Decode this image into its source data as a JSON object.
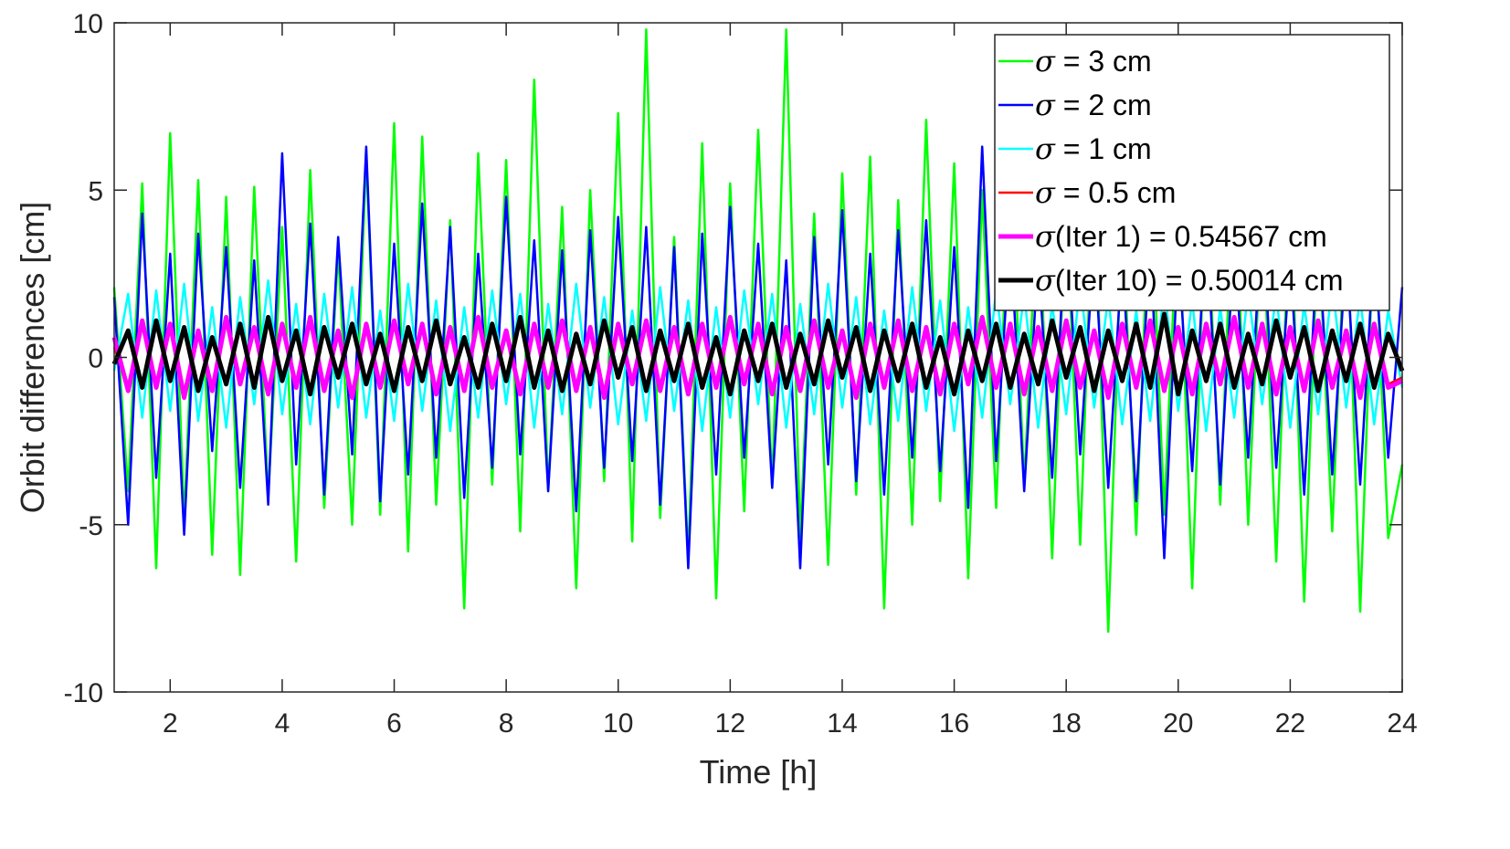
{
  "chart_data": {
    "type": "line",
    "xlabel": "Time [h]",
    "ylabel": "Orbit differences [cm]",
    "xlim": [
      1,
      24
    ],
    "ylim": [
      -10,
      10
    ],
    "xticks": [
      2,
      4,
      6,
      8,
      10,
      12,
      14,
      16,
      18,
      20,
      22,
      24
    ],
    "yticks": [
      -10,
      -5,
      0,
      5,
      10
    ],
    "grid": false,
    "legend_position": "top-right",
    "series": [
      {
        "name": "σ = 3 cm",
        "symbol": "σ",
        "label_rest": " = 3 cm",
        "color": "#00ff00",
        "line_width": 2.5,
        "std_cm": 3,
        "x": [
          1.0,
          1.25,
          1.5,
          1.75,
          2.0,
          2.25,
          2.5,
          2.75,
          3.0,
          3.25,
          3.5,
          3.75,
          4.0,
          4.25,
          4.5,
          4.75,
          5.0,
          5.25,
          5.5,
          5.75,
          6.0,
          6.25,
          6.5,
          6.75,
          7.0,
          7.25,
          7.5,
          7.75,
          8.0,
          8.25,
          8.5,
          8.75,
          9.0,
          9.25,
          9.5,
          9.75,
          10.0,
          10.25,
          10.5,
          10.75,
          11.0,
          11.25,
          11.5,
          11.75,
          12.0,
          12.25,
          12.5,
          12.75,
          13.0,
          13.25,
          13.5,
          13.75,
          14.0,
          14.25,
          14.5,
          14.75,
          15.0,
          15.25,
          15.5,
          15.75,
          16.0,
          16.25,
          16.5,
          16.75,
          17.0,
          17.25,
          17.5,
          17.75,
          18.0,
          18.25,
          18.5,
          18.75,
          19.0,
          19.25,
          19.5,
          19.75,
          20.0,
          20.25,
          20.5,
          20.75,
          21.0,
          21.25,
          21.5,
          21.75,
          22.0,
          22.25,
          22.5,
          22.75,
          23.0,
          23.25,
          23.5,
          23.75,
          24.0
        ],
        "y": [
          2.1,
          -4.0,
          5.2,
          -6.3,
          6.7,
          -4.9,
          5.3,
          -5.9,
          4.8,
          -6.5,
          5.1,
          -4.2,
          3.9,
          -6.1,
          5.6,
          -4.5,
          3.2,
          -5.0,
          6.0,
          -4.7,
          7.0,
          -5.8,
          6.6,
          -4.4,
          4.1,
          -7.5,
          6.1,
          -3.8,
          5.9,
          -5.2,
          8.3,
          -4.0,
          4.5,
          -6.9,
          5.0,
          -3.7,
          7.3,
          -5.5,
          9.8,
          -4.8,
          3.6,
          -6.0,
          6.4,
          -7.2,
          5.2,
          -4.6,
          6.8,
          -3.9,
          9.8,
          -5.4,
          4.3,
          -6.2,
          5.5,
          -4.1,
          6.0,
          -7.5,
          4.7,
          -5.0,
          7.1,
          -4.3,
          5.8,
          -6.6,
          5.0,
          -4.5,
          6.3,
          -3.8,
          5.2,
          -6.0,
          4.9,
          -5.6,
          6.1,
          -8.2,
          4.4,
          -5.3,
          5.7,
          -4.7,
          4.9,
          -6.9,
          5.3,
          -4.4,
          6.2,
          -5.0,
          4.6,
          -6.1,
          5.1,
          -7.3,
          4.0,
          -5.2,
          4.8,
          -7.6,
          4.3,
          -5.4,
          -3.2
        ]
      },
      {
        "name": "σ = 2 cm",
        "symbol": "σ",
        "label_rest": " = 2 cm",
        "color": "#0000ff",
        "line_width": 2.5,
        "std_cm": 2,
        "x": [
          1.0,
          1.25,
          1.5,
          1.75,
          2.0,
          2.25,
          2.5,
          2.75,
          3.0,
          3.25,
          3.5,
          3.75,
          4.0,
          4.25,
          4.5,
          4.75,
          5.0,
          5.25,
          5.5,
          5.75,
          6.0,
          6.25,
          6.5,
          6.75,
          7.0,
          7.25,
          7.5,
          7.75,
          8.0,
          8.25,
          8.5,
          8.75,
          9.0,
          9.25,
          9.5,
          9.75,
          10.0,
          10.25,
          10.5,
          10.75,
          11.0,
          11.25,
          11.5,
          11.75,
          12.0,
          12.25,
          12.5,
          12.75,
          13.0,
          13.25,
          13.5,
          13.75,
          14.0,
          14.25,
          14.5,
          14.75,
          15.0,
          15.25,
          15.5,
          15.75,
          16.0,
          16.25,
          16.5,
          16.75,
          17.0,
          17.25,
          17.5,
          17.75,
          18.0,
          18.25,
          18.5,
          18.75,
          19.0,
          19.25,
          19.5,
          19.75,
          20.0,
          20.25,
          20.5,
          20.75,
          21.0,
          21.25,
          21.5,
          21.75,
          22.0,
          22.25,
          22.5,
          22.75,
          23.0,
          23.25,
          23.5,
          23.75,
          24.0
        ],
        "y": [
          1.8,
          -5.0,
          4.3,
          -3.6,
          3.1,
          -5.3,
          3.7,
          -2.8,
          3.3,
          -3.9,
          2.9,
          -4.4,
          6.1,
          -3.2,
          4.0,
          -4.1,
          3.6,
          -2.9,
          6.3,
          -4.3,
          3.4,
          -3.5,
          4.6,
          -3.0,
          3.9,
          -4.2,
          3.1,
          -3.3,
          4.8,
          -2.9,
          3.5,
          -4.0,
          3.2,
          -4.6,
          3.8,
          -3.3,
          4.2,
          -3.1,
          3.9,
          -4.4,
          3.3,
          -6.3,
          3.7,
          -3.5,
          4.5,
          -3.0,
          3.4,
          -3.9,
          2.9,
          -6.3,
          3.6,
          -3.2,
          4.4,
          -3.7,
          3.1,
          -4.1,
          3.8,
          -3.0,
          4.1,
          -3.4,
          3.3,
          -4.5,
          6.3,
          -3.1,
          3.7,
          -4.0,
          3.0,
          -3.6,
          4.2,
          -2.9,
          3.4,
          -3.9,
          3.1,
          -4.3,
          3.6,
          -6.0,
          3.2,
          -3.4,
          4.0,
          -3.8,
          3.5,
          -3.0,
          4.3,
          -3.3,
          3.0,
          -4.1,
          3.7,
          -3.5,
          3.2,
          -3.8,
          3.4,
          -3.0,
          2.1
        ]
      },
      {
        "name": "σ = 1 cm",
        "symbol": "σ",
        "label_rest": " = 1 cm",
        "color": "#00ffff",
        "line_width": 2.5,
        "std_cm": 1,
        "x": [
          1.0,
          1.25,
          1.5,
          1.75,
          2.0,
          2.25,
          2.5,
          2.75,
          3.0,
          3.25,
          3.5,
          3.75,
          4.0,
          4.25,
          4.5,
          4.75,
          5.0,
          5.25,
          5.5,
          5.75,
          6.0,
          6.25,
          6.5,
          6.75,
          7.0,
          7.25,
          7.5,
          7.75,
          8.0,
          8.25,
          8.5,
          8.75,
          9.0,
          9.25,
          9.5,
          9.75,
          10.0,
          10.25,
          10.5,
          10.75,
          11.0,
          11.25,
          11.5,
          11.75,
          12.0,
          12.25,
          12.5,
          12.75,
          13.0,
          13.25,
          13.5,
          13.75,
          14.0,
          14.25,
          14.5,
          14.75,
          15.0,
          15.25,
          15.5,
          15.75,
          16.0,
          16.25,
          16.5,
          16.75,
          17.0,
          17.25,
          17.5,
          17.75,
          18.0,
          18.25,
          18.5,
          18.75,
          19.0,
          19.25,
          19.5,
          19.75,
          20.0,
          20.25,
          20.5,
          20.75,
          21.0,
          21.25,
          21.5,
          21.75,
          22.0,
          22.25,
          22.5,
          22.75,
          23.0,
          23.25,
          23.5,
          23.75,
          24.0
        ],
        "y": [
          -0.4,
          1.9,
          -1.8,
          2.0,
          -1.6,
          2.2,
          -1.9,
          1.5,
          -2.1,
          1.8,
          -1.4,
          2.3,
          -1.7,
          1.6,
          -2.0,
          1.9,
          -1.5,
          2.1,
          -1.8,
          1.4,
          -1.9,
          2.2,
          -1.6,
          1.7,
          -2.2,
          1.5,
          -1.8,
          2.0,
          -1.4,
          1.9,
          -2.1,
          1.6,
          -1.7,
          2.2,
          -1.5,
          1.8,
          -2.0,
          1.4,
          -1.9,
          2.1,
          -1.6,
          1.7,
          -2.2,
          1.5,
          -1.8,
          2.0,
          -1.4,
          1.9,
          -2.1,
          1.6,
          -1.7,
          2.2,
          -1.5,
          1.8,
          -2.0,
          1.4,
          -1.9,
          2.1,
          -1.6,
          1.7,
          -2.2,
          1.5,
          -1.8,
          2.0,
          -1.4,
          1.9,
          -2.1,
          1.6,
          -1.7,
          2.2,
          -1.5,
          1.8,
          -2.0,
          1.4,
          -1.9,
          2.1,
          -1.6,
          1.7,
          -2.2,
          1.5,
          -1.8,
          2.0,
          -1.4,
          1.9,
          -2.1,
          1.6,
          -1.7,
          2.2,
          -1.5,
          1.8,
          -2.0,
          1.4,
          -0.9
        ]
      },
      {
        "name": "σ = 0.5 cm",
        "symbol": "σ",
        "label_rest": " = 0.5 cm",
        "color": "#ff0000",
        "line_width": 2.5,
        "std_cm": 0.5,
        "x": [
          1.0,
          1.25,
          1.5,
          1.75,
          2.0,
          2.25,
          2.5,
          2.75,
          3.0,
          3.25,
          3.5,
          3.75,
          4.0,
          4.25,
          4.5,
          4.75,
          5.0,
          5.25,
          5.5,
          5.75,
          6.0,
          6.25,
          6.5,
          6.75,
          7.0,
          7.25,
          7.5,
          7.75,
          8.0,
          8.25,
          8.5,
          8.75,
          9.0,
          9.25,
          9.5,
          9.75,
          10.0,
          10.25,
          10.5,
          10.75,
          11.0,
          11.25,
          11.5,
          11.75,
          12.0,
          12.25,
          12.5,
          12.75,
          13.0,
          13.25,
          13.5,
          13.75,
          14.0,
          14.25,
          14.5,
          14.75,
          15.0,
          15.25,
          15.5,
          15.75,
          16.0,
          16.25,
          16.5,
          16.75,
          17.0,
          17.25,
          17.5,
          17.75,
          18.0,
          18.25,
          18.5,
          18.75,
          19.0,
          19.25,
          19.5,
          19.75,
          20.0,
          20.25,
          20.5,
          20.75,
          21.0,
          21.25,
          21.5,
          21.75,
          22.0,
          22.25,
          22.5,
          22.75,
          23.0,
          23.25,
          23.5,
          23.75,
          24.0
        ],
        "y": [
          0.3,
          -0.9,
          1.0,
          -0.8,
          0.9,
          -1.0,
          0.7,
          -0.9,
          1.1,
          -0.7,
          0.8,
          -1.0,
          0.9,
          -0.8,
          1.0,
          -0.9,
          0.7,
          -1.1,
          0.9,
          -0.8,
          1.0,
          -0.7,
          0.9,
          -1.0,
          0.8,
          -0.9,
          1.1,
          -0.8,
          0.7,
          -1.0,
          0.9,
          -0.8,
          1.0,
          -0.9,
          0.8,
          -1.1,
          0.9,
          -0.7,
          1.0,
          -0.9,
          0.8,
          -1.0,
          0.9,
          -0.8,
          1.1,
          -0.7,
          0.9,
          -1.0,
          0.8,
          -0.9,
          1.0,
          -0.8,
          0.7,
          -1.1,
          0.9,
          -0.8,
          1.0,
          -0.9,
          0.8,
          -1.0,
          0.9,
          -0.7,
          1.1,
          -0.8,
          0.9,
          -1.0,
          0.8,
          -0.9,
          1.0,
          -0.8,
          0.7,
          -1.1,
          0.9,
          -0.8,
          1.0,
          -0.9,
          0.8,
          -1.0,
          0.9,
          -0.7,
          1.1,
          -0.8,
          0.9,
          -1.0,
          0.8,
          -0.9,
          1.0,
          -0.8,
          0.7,
          -1.1,
          0.9,
          -0.8,
          -0.6
        ]
      },
      {
        "name": "σ(Iter 1) = 0.54567 cm",
        "symbol": "σ",
        "label_rest": "(Iter 1) = 0.54567 cm",
        "color": "#ff00ff",
        "line_width": 5,
        "std_cm": 0.54567,
        "x": [
          1.0,
          1.25,
          1.5,
          1.75,
          2.0,
          2.25,
          2.5,
          2.75,
          3.0,
          3.25,
          3.5,
          3.75,
          4.0,
          4.25,
          4.5,
          4.75,
          5.0,
          5.25,
          5.5,
          5.75,
          6.0,
          6.25,
          6.5,
          6.75,
          7.0,
          7.25,
          7.5,
          7.75,
          8.0,
          8.25,
          8.5,
          8.75,
          9.0,
          9.25,
          9.5,
          9.75,
          10.0,
          10.25,
          10.5,
          10.75,
          11.0,
          11.25,
          11.5,
          11.75,
          12.0,
          12.25,
          12.5,
          12.75,
          13.0,
          13.25,
          13.5,
          13.75,
          14.0,
          14.25,
          14.5,
          14.75,
          15.0,
          15.25,
          15.5,
          15.75,
          16.0,
          16.25,
          16.5,
          16.75,
          17.0,
          17.25,
          17.5,
          17.75,
          18.0,
          18.25,
          18.5,
          18.75,
          19.0,
          19.25,
          19.5,
          19.75,
          20.0,
          20.25,
          20.5,
          20.75,
          21.0,
          21.25,
          21.5,
          21.75,
          22.0,
          22.25,
          22.5,
          22.75,
          23.0,
          23.25,
          23.5,
          23.75,
          24.0
        ],
        "y": [
          0.6,
          -1.0,
          1.1,
          -0.9,
          1.0,
          -1.2,
          0.8,
          -1.0,
          1.2,
          -0.8,
          0.9,
          -1.1,
          1.0,
          -0.9,
          1.2,
          -1.0,
          0.8,
          -1.2,
          1.0,
          -0.9,
          1.1,
          -0.8,
          1.0,
          -1.1,
          0.9,
          -1.0,
          1.2,
          -0.9,
          0.8,
          -1.1,
          1.0,
          -0.9,
          1.1,
          -1.0,
          0.9,
          -1.2,
          1.0,
          -0.8,
          1.1,
          -1.0,
          0.9,
          -1.1,
          1.0,
          -0.9,
          1.2,
          -0.8,
          1.0,
          -1.1,
          0.9,
          -1.0,
          1.1,
          -0.9,
          0.8,
          -1.2,
          1.0,
          -0.9,
          1.1,
          -1.0,
          0.9,
          -1.1,
          1.0,
          -0.8,
          1.2,
          -0.9,
          1.0,
          -1.1,
          0.9,
          -1.0,
          1.1,
          -0.9,
          0.8,
          -1.2,
          1.0,
          -0.9,
          1.1,
          -1.0,
          0.9,
          -1.1,
          1.0,
          -0.8,
          1.2,
          -0.9,
          1.0,
          -1.1,
          0.9,
          -1.0,
          1.1,
          -0.9,
          0.8,
          -1.2,
          1.0,
          -0.9,
          -0.7
        ]
      },
      {
        "name": "σ(Iter 10) = 0.50014 cm",
        "symbol": "σ",
        "label_rest": "(Iter 10) = 0.50014 cm",
        "color": "#000000",
        "line_width": 5,
        "std_cm": 0.50014,
        "x": [
          1.0,
          1.25,
          1.5,
          1.75,
          2.0,
          2.25,
          2.5,
          2.75,
          3.0,
          3.25,
          3.5,
          3.75,
          4.0,
          4.25,
          4.5,
          4.75,
          5.0,
          5.25,
          5.5,
          5.75,
          6.0,
          6.25,
          6.5,
          6.75,
          7.0,
          7.25,
          7.5,
          7.75,
          8.0,
          8.25,
          8.5,
          8.75,
          9.0,
          9.25,
          9.5,
          9.75,
          10.0,
          10.25,
          10.5,
          10.75,
          11.0,
          11.25,
          11.5,
          11.75,
          12.0,
          12.25,
          12.5,
          12.75,
          13.0,
          13.25,
          13.5,
          13.75,
          14.0,
          14.25,
          14.5,
          14.75,
          15.0,
          15.25,
          15.5,
          15.75,
          16.0,
          16.25,
          16.5,
          16.75,
          17.0,
          17.25,
          17.5,
          17.75,
          18.0,
          18.25,
          18.5,
          18.75,
          19.0,
          19.25,
          19.5,
          19.75,
          20.0,
          20.25,
          20.5,
          20.75,
          21.0,
          21.25,
          21.5,
          21.75,
          22.0,
          22.25,
          22.5,
          22.75,
          23.0,
          23.25,
          23.5,
          23.75,
          24.0
        ],
        "y": [
          -0.2,
          0.8,
          -0.9,
          1.1,
          -0.7,
          0.9,
          -1.0,
          0.6,
          -0.8,
          1.0,
          -0.9,
          1.2,
          -0.7,
          0.8,
          -1.1,
          0.9,
          -0.6,
          1.0,
          -0.8,
          0.7,
          -1.0,
          0.9,
          -0.7,
          1.1,
          -0.8,
          0.6,
          -0.9,
          1.0,
          -0.7,
          1.2,
          -0.9,
          0.8,
          -1.0,
          0.7,
          -0.8,
          1.1,
          -0.6,
          0.9,
          -1.0,
          0.8,
          -0.7,
          1.0,
          -0.9,
          0.6,
          -1.1,
          0.8,
          -0.7,
          1.0,
          -0.9,
          0.7,
          -0.8,
          1.1,
          -0.6,
          0.9,
          -1.0,
          0.8,
          -0.7,
          1.0,
          -0.9,
          0.6,
          -1.1,
          0.8,
          -0.7,
          1.0,
          -0.9,
          0.7,
          -0.8,
          1.1,
          -0.6,
          0.9,
          -1.0,
          0.8,
          -0.7,
          1.0,
          -0.9,
          1.3,
          -1.1,
          0.8,
          -0.7,
          1.0,
          -0.9,
          0.7,
          -0.8,
          1.1,
          -0.6,
          0.9,
          -1.0,
          0.8,
          -0.7,
          1.0,
          -0.9,
          0.7,
          -0.4
        ]
      }
    ]
  }
}
